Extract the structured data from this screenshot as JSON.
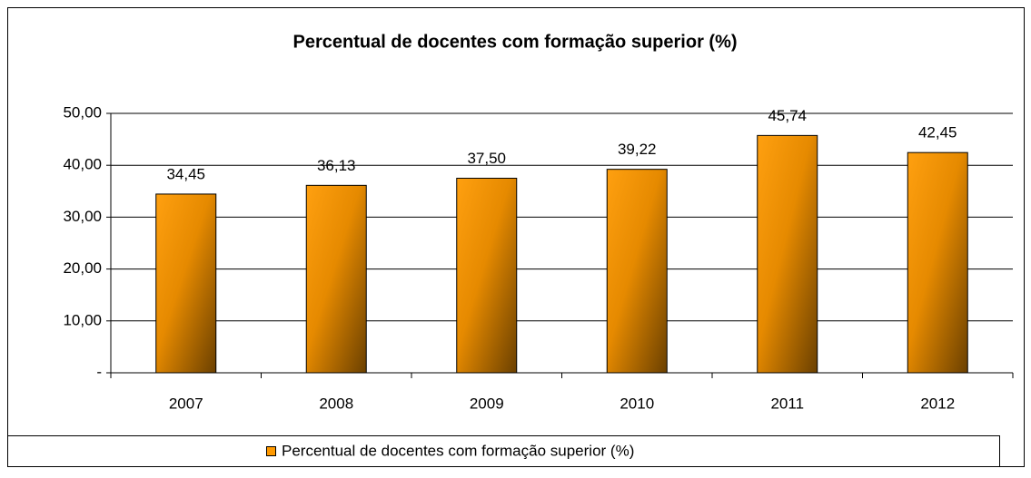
{
  "chart_data": {
    "type": "bar",
    "title": "Percentual de docentes com formação superior (%)",
    "categories": [
      "2007",
      "2008",
      "2009",
      "2010",
      "2011",
      "2012"
    ],
    "series": [
      {
        "name": "Percentual de docentes com formação superior (%)",
        "color": "#ff9900",
        "values": [
          34.45,
          36.13,
          37.5,
          39.22,
          45.74,
          42.45
        ],
        "value_labels": [
          "34,45",
          "36,13",
          "37,50",
          "39,22",
          "45,74",
          "42,45"
        ]
      }
    ],
    "ylim": [
      0,
      50
    ],
    "yticks": [
      {
        "value": 0,
        "label": "-"
      },
      {
        "value": 10,
        "label": "10,00"
      },
      {
        "value": 20,
        "label": "20,00"
      },
      {
        "value": 30,
        "label": "30,00"
      },
      {
        "value": 40,
        "label": "40,00"
      },
      {
        "value": 50,
        "label": "50,00"
      }
    ],
    "grid": true,
    "legend": "bottom"
  }
}
